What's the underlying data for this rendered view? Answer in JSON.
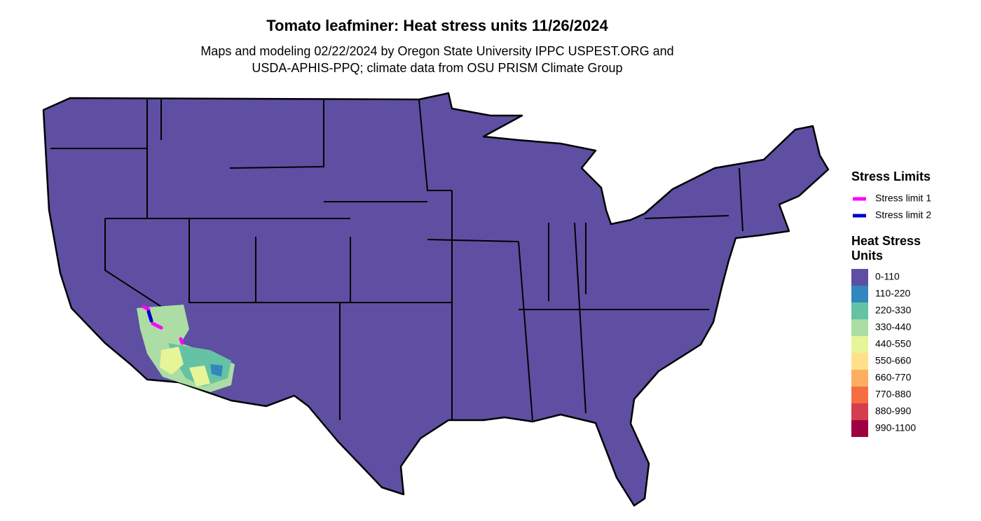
{
  "header": {
    "title": "Tomato leafminer: Heat stress units 11/26/2024",
    "subtitle": [
      "Maps and modeling 02/22/2024 by Oregon State University IPPC USPEST.ORG and",
      "USDA-APHIS-PPQ; climate data from OSU PRISM Climate Group"
    ]
  },
  "legend": {
    "stress_limits": {
      "title": "Stress Limits",
      "items": [
        {
          "label": "Stress limit 1",
          "color": "#ff00ff"
        },
        {
          "label": "Stress limit 2",
          "color": "#0000cd"
        }
      ]
    },
    "heat_stress_units": {
      "title": [
        "Heat Stress",
        "Units"
      ],
      "items": [
        {
          "label": "0-110",
          "color": "#5e4fa2"
        },
        {
          "label": "110-220",
          "color": "#3288bd"
        },
        {
          "label": "220-330",
          "color": "#66c2a5"
        },
        {
          "label": "330-440",
          "color": "#abdda4"
        },
        {
          "label": "440-550",
          "color": "#e6f598"
        },
        {
          "label": "550-660",
          "color": "#fee08b"
        },
        {
          "label": "660-770",
          "color": "#fdae61"
        },
        {
          "label": "770-880",
          "color": "#f46d43"
        },
        {
          "label": "880-990",
          "color": "#d53e4f"
        },
        {
          "label": "990-1100",
          "color": "#9e0142"
        }
      ]
    }
  }
}
